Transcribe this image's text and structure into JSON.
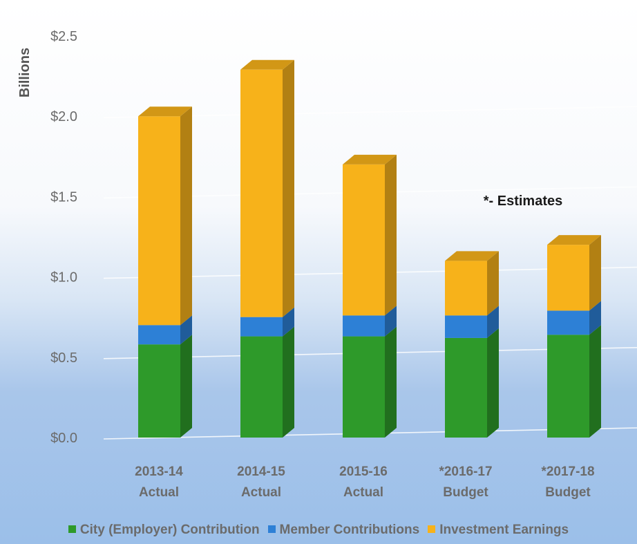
{
  "chart_data": {
    "type": "bar",
    "stacked": true,
    "three_d": true,
    "ylabel": "Billions",
    "ylim": [
      0,
      2.5
    ],
    "yticks": [
      {
        "value": 0.0,
        "label": "$0.0"
      },
      {
        "value": 0.5,
        "label": "$0.5"
      },
      {
        "value": 1.0,
        "label": "$1.0"
      },
      {
        "value": 1.5,
        "label": "$1.5"
      },
      {
        "value": 2.0,
        "label": "$2.0"
      },
      {
        "value": 2.5,
        "label": "$2.5"
      }
    ],
    "categories": [
      [
        "2013-14",
        "Actual"
      ],
      [
        "2014-15",
        "Actual"
      ],
      [
        "2015-16",
        "Actual"
      ],
      [
        "*2016-17",
        "Budget"
      ],
      [
        "*2017-18",
        "Budget"
      ]
    ],
    "series": [
      {
        "name": "City (Employer) Contribution",
        "color": "#2e9a2a",
        "values": [
          0.58,
          0.63,
          0.63,
          0.62,
          0.64
        ]
      },
      {
        "name": "Member Contributions",
        "color": "#2d80d6",
        "values": [
          0.12,
          0.12,
          0.13,
          0.14,
          0.15
        ]
      },
      {
        "name": "Investment Earnings",
        "color": "#f7b21a",
        "values": [
          1.3,
          1.54,
          0.94,
          0.34,
          0.41
        ]
      }
    ],
    "annotations": [
      "*- Estimates"
    ],
    "grid": true,
    "legend_position": "bottom"
  }
}
